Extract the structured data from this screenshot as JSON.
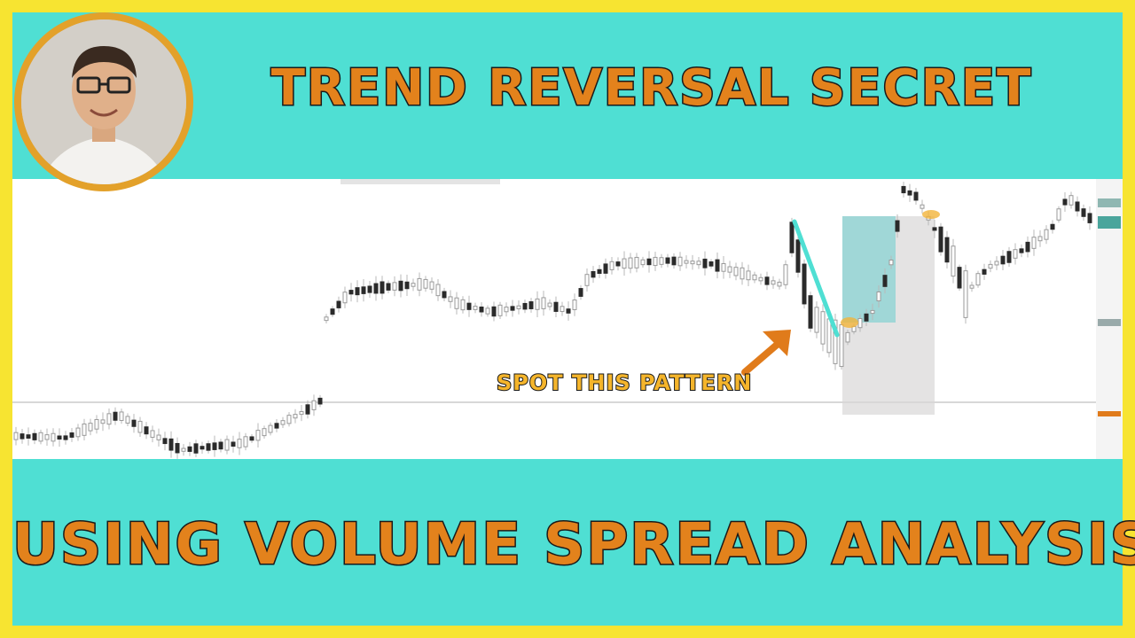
{
  "thumbnail": {
    "title_top": "TREND REVERSAL SECRET",
    "title_bottom": "USING VOLUME SPREAD ANALYSIS",
    "callout": "SPOT THIS PATTERN"
  },
  "colors": {
    "border": "#f7e431",
    "band": "#4fdfd3",
    "title_fill": "#e3821c",
    "callout_fill": "#f5b52b",
    "trend_line": "#4fdfd3",
    "arrow": "#e07b1b"
  },
  "icons": {
    "avatar": "presenter-portrait",
    "arrow": "arrow-up-right-icon"
  }
}
